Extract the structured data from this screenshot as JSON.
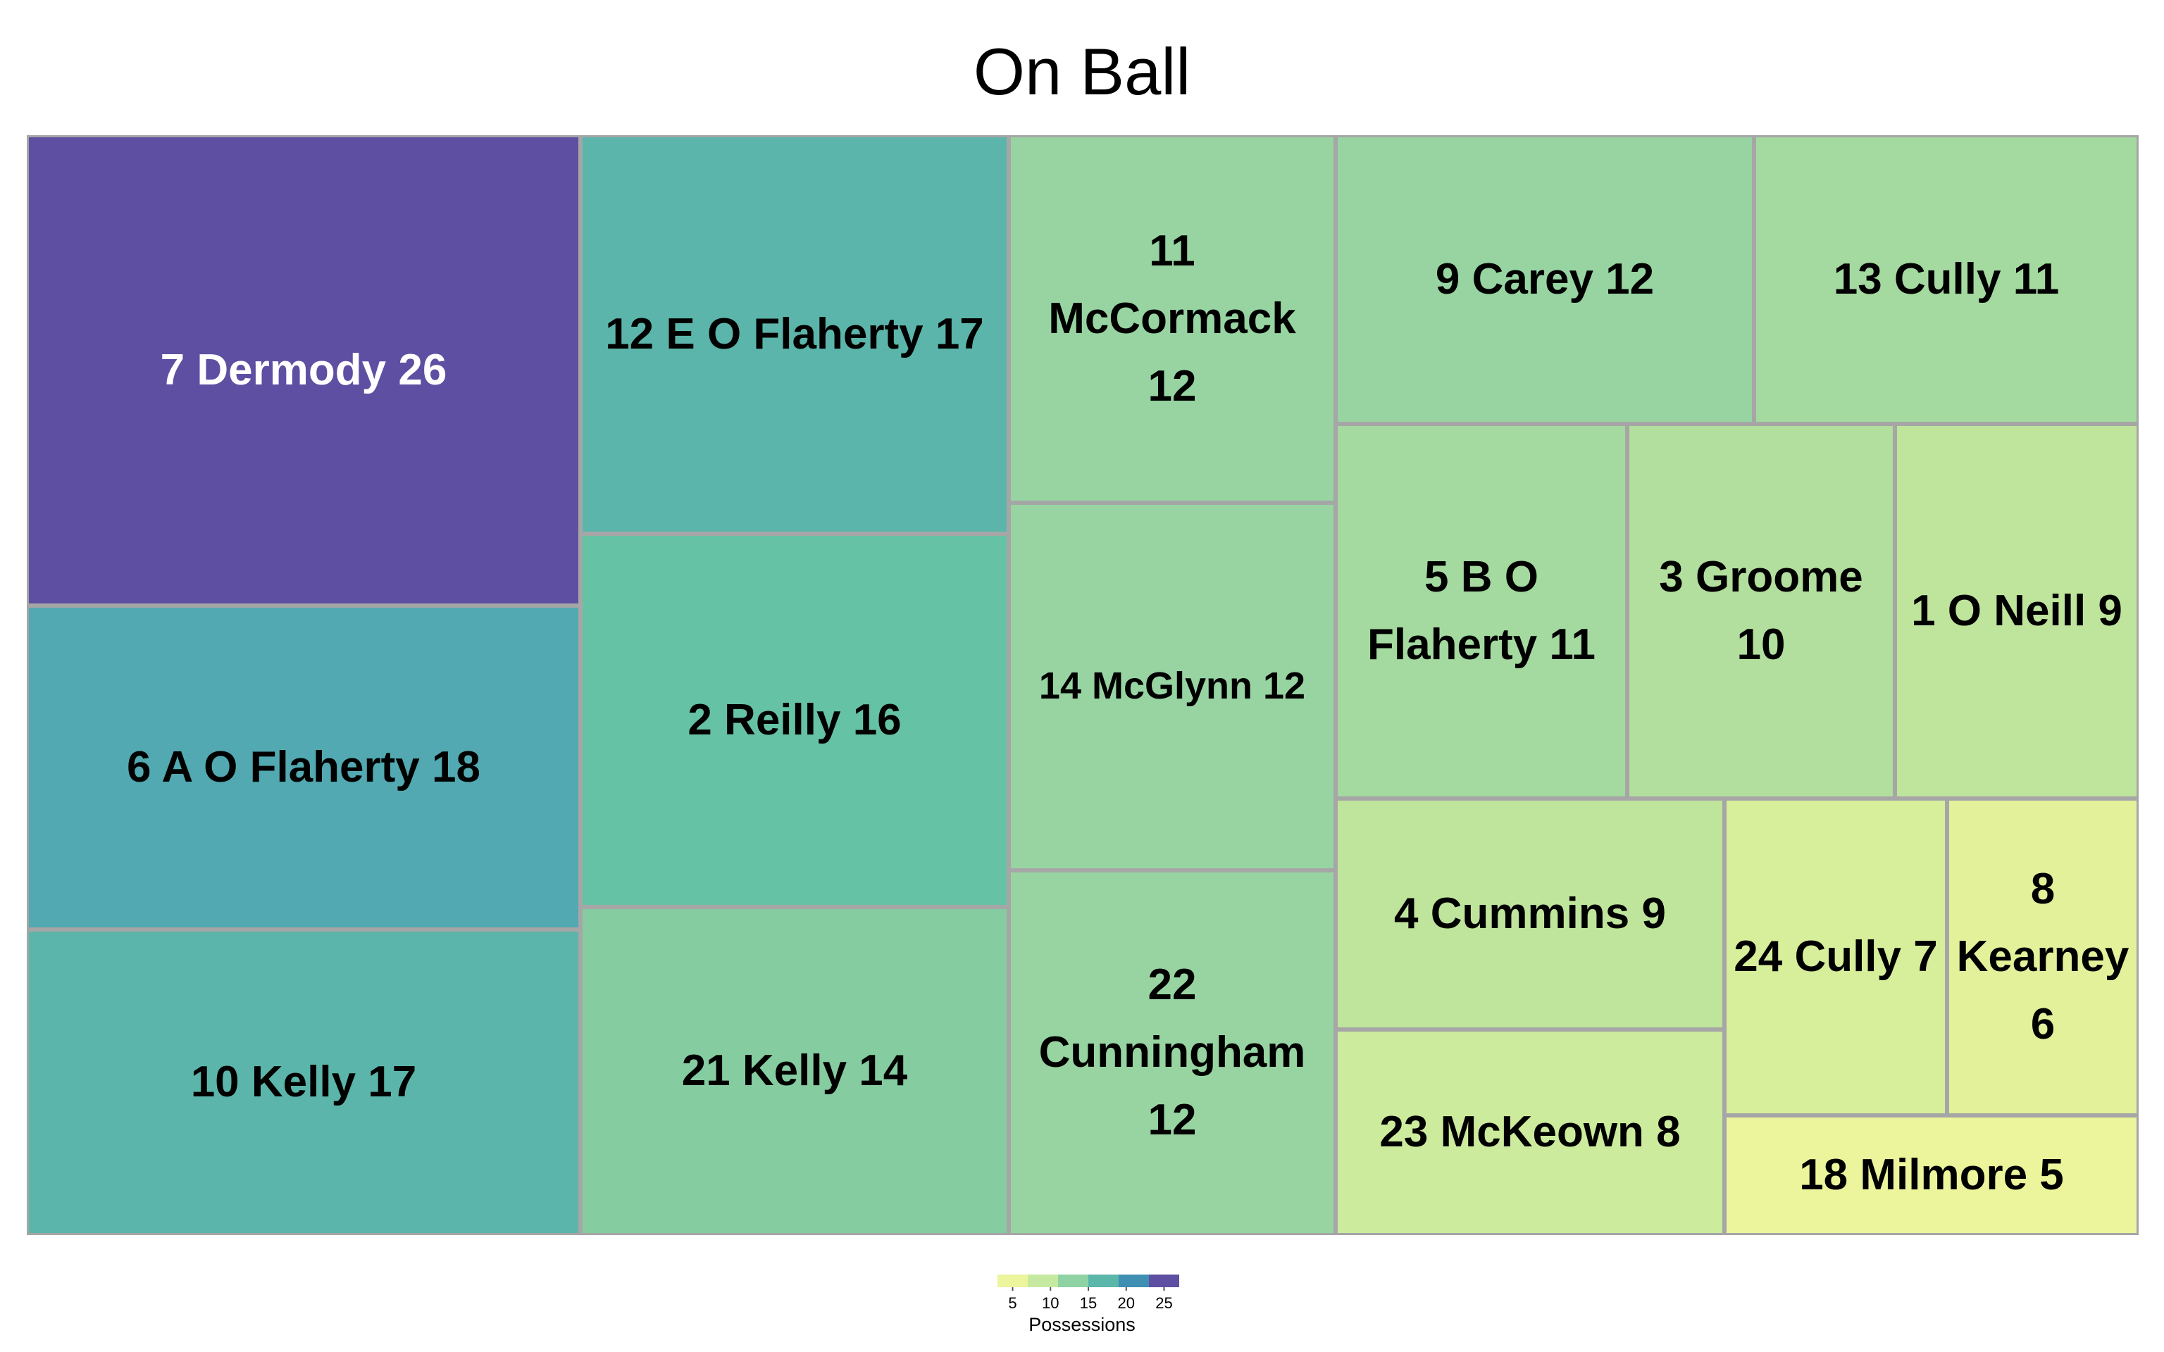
{
  "chart_data": {
    "type": "treemap",
    "title": "On Ball",
    "legend": {
      "title": "Possessions",
      "ticks": [
        5,
        10,
        15,
        20,
        25
      ],
      "colors": [
        "#ecf49c",
        "#c6e9a1",
        "#8fd2a3",
        "#5bb7a9",
        "#3f8fb3",
        "#5e4fa2"
      ]
    },
    "items": [
      {
        "label": "7 Dermody 26",
        "value": 26,
        "color": "#5e4fa2"
      },
      {
        "label": "6 A O Flaherty 18",
        "value": 18,
        "color": "#52a9b1"
      },
      {
        "label": "10 Kelly 17",
        "value": 17,
        "color": "#5cb5aa"
      },
      {
        "label": "12 E O Flaherty 17",
        "value": 17,
        "color": "#5cb5aa"
      },
      {
        "label": "2 Reilly 16",
        "value": 16,
        "color": "#66c2a5"
      },
      {
        "label": "21 Kelly 14",
        "value": 14,
        "color": "#85cca1"
      },
      {
        "label": "11 McCormack 12",
        "value": 12,
        "color": "#97d4a2"
      },
      {
        "label": "14 McGlynn 12",
        "value": 12,
        "color": "#97d4a2"
      },
      {
        "label": "22 Cunningham 12",
        "value": 12,
        "color": "#97d4a2"
      },
      {
        "label": "9 Carey 12",
        "value": 12,
        "color": "#97d4a2"
      },
      {
        "label": "13 Cully 11",
        "value": 11,
        "color": "#a4d9a0"
      },
      {
        "label": "5 B O Flaherty 11",
        "value": 11,
        "color": "#a4d9a0"
      },
      {
        "label": "3 Groome 10",
        "value": 10,
        "color": "#b2de9e"
      },
      {
        "label": "1 O Neill 9",
        "value": 9,
        "color": "#bfe49c"
      },
      {
        "label": "4 Cummins 9",
        "value": 9,
        "color": "#bfe49c"
      },
      {
        "label": "23 McKeown 8",
        "value": 8,
        "color": "#cceb9d"
      },
      {
        "label": "24 Cully 7",
        "value": 7,
        "color": "#d7ee9a"
      },
      {
        "label": "8 Kearney 6",
        "value": 6,
        "color": "#e2f19a"
      },
      {
        "label": "18 Milmore 5",
        "value": 5,
        "color": "#ecf59b"
      }
    ]
  }
}
